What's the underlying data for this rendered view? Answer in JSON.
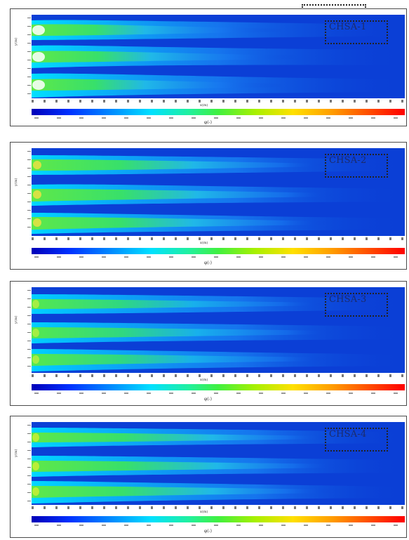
{
  "panels": [
    {
      "tag": "CHSA-1"
    },
    {
      "tag": "CHSA-2"
    },
    {
      "tag": "CHSA-3"
    },
    {
      "tag": "CHSA-4"
    }
  ],
  "colors": {
    "background": "#0b3fd6",
    "jet_core": "#3cf04a",
    "jet_mid": "#00d0ff"
  }
}
